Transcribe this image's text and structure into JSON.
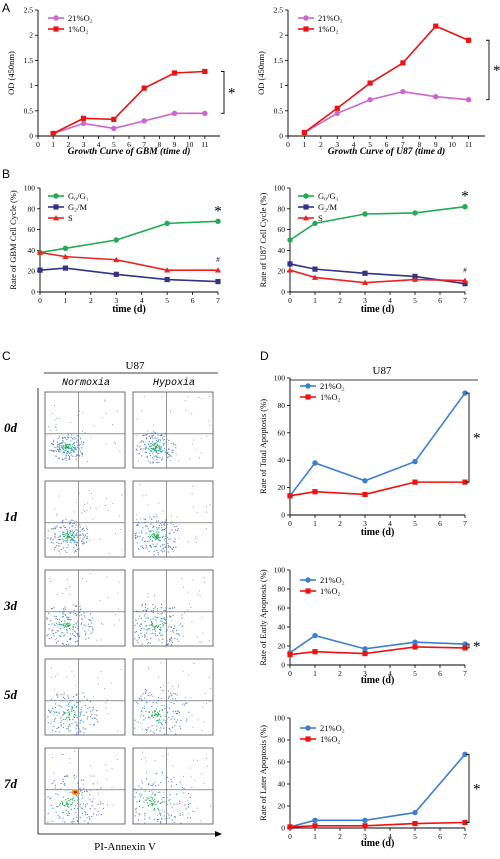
{
  "panels": {
    "A": "A",
    "B": "B",
    "C": "C",
    "D": "D"
  },
  "colors": {
    "normoxia": "#cc66cc",
    "hypoxia": "#ee1111",
    "g0g1": "#22aa55",
    "g2m": "#333388",
    "s": "#ee2222",
    "blue": "#3b7fd0",
    "red": "#ee1111"
  },
  "chart_data": [
    {
      "id": "A1",
      "type": "line",
      "ylabel": "OD (450nm)",
      "xlabel": "Growth Curve of GBM (time d)",
      "x": [
        1,
        3,
        5,
        7,
        9,
        11
      ],
      "xlim": [
        0,
        12
      ],
      "ylim": [
        0,
        2.5
      ],
      "xticks": [
        "0",
        "1",
        "2",
        "3",
        "4",
        "5",
        "6",
        "7",
        "8",
        "9",
        "10",
        "11"
      ],
      "yticks": [
        "0",
        "0.5",
        "1",
        "1.5",
        "2",
        "2.5"
      ],
      "series": [
        {
          "name": "21%O₂",
          "values": [
            0.05,
            0.25,
            0.15,
            0.3,
            0.45,
            0.45
          ],
          "color_key": "normoxia"
        },
        {
          "name": "1%O₂",
          "values": [
            0.05,
            0.35,
            0.33,
            0.95,
            1.25,
            1.28
          ],
          "color_key": "hypoxia"
        }
      ],
      "annotation": "*"
    },
    {
      "id": "A2",
      "type": "line",
      "ylabel": "OD (450nm)",
      "xlabel": "Growth Curve of U87 (time d)",
      "x": [
        1,
        3,
        5,
        7,
        9,
        11
      ],
      "xlim": [
        0,
        12
      ],
      "ylim": [
        0,
        2.5
      ],
      "xticks": [
        "0",
        "1",
        "2",
        "3",
        "4",
        "5",
        "6",
        "7",
        "8",
        "9",
        "10",
        "11"
      ],
      "yticks": [
        "0",
        "0.5",
        "1",
        "1.5",
        "2",
        "2.5"
      ],
      "series": [
        {
          "name": "21%O₂",
          "values": [
            0.07,
            0.45,
            0.72,
            0.88,
            0.78,
            0.72
          ],
          "color_key": "normoxia"
        },
        {
          "name": "1%O₂",
          "values": [
            0.07,
            0.55,
            1.05,
            1.45,
            2.18,
            1.9
          ],
          "color_key": "hypoxia"
        }
      ],
      "annotation": "*"
    },
    {
      "id": "B1",
      "type": "line",
      "ylabel": "Rate of GBM Cell Cycle (%)",
      "xlabel": "time (d)",
      "x": [
        0,
        1,
        3,
        5,
        7
      ],
      "xlim": [
        0,
        7
      ],
      "ylim": [
        0,
        100
      ],
      "xticks": [
        "0",
        "1",
        "2",
        "3",
        "4",
        "5",
        "6",
        "7"
      ],
      "yticks": [
        "0",
        "20",
        "40",
        "60",
        "80",
        "100"
      ],
      "series": [
        {
          "name": "G₀/G₁",
          "values": [
            38,
            42,
            50,
            66,
            68
          ],
          "color_key": "g0g1"
        },
        {
          "name": "G₂/M",
          "values": [
            21,
            23,
            17,
            12,
            10
          ],
          "color_key": "g2m"
        },
        {
          "name": "S",
          "values": [
            38,
            34,
            31,
            21,
            21
          ],
          "color_key": "s"
        }
      ],
      "annotations": [
        "*",
        "#"
      ]
    },
    {
      "id": "B2",
      "type": "line",
      "ylabel": "Rate of U87 Cell Cycle (%)",
      "xlabel": "time (d)",
      "x": [
        0,
        1,
        3,
        5,
        7
      ],
      "xlim": [
        0,
        7
      ],
      "ylim": [
        0,
        100
      ],
      "xticks": [
        "0",
        "1",
        "2",
        "3",
        "4",
        "5",
        "6",
        "7"
      ],
      "yticks": [
        "0",
        "20",
        "40",
        "60",
        "80",
        "100"
      ],
      "series": [
        {
          "name": "G₀/G₁",
          "values": [
            50,
            66,
            75,
            76,
            82
          ],
          "color_key": "g0g1"
        },
        {
          "name": "G₂/M",
          "values": [
            27,
            22,
            18,
            15,
            8
          ],
          "color_key": "g2m"
        },
        {
          "name": "S",
          "values": [
            21,
            14,
            9,
            12,
            11
          ],
          "color_key": "s"
        }
      ],
      "annotations": [
        "*",
        "#"
      ]
    },
    {
      "id": "D1",
      "type": "line",
      "ylabel": "Rate of Total Apoptosis (%)",
      "xlabel": "time (d)",
      "x": [
        0,
        1,
        3,
        5,
        7
      ],
      "xlim": [
        0,
        7
      ],
      "ylim": [
        0,
        100
      ],
      "xticks": [
        "0",
        "1",
        "2",
        "3",
        "4",
        "5",
        "6",
        "7"
      ],
      "yticks": [
        "0",
        "20",
        "40",
        "60",
        "80",
        "100"
      ],
      "series": [
        {
          "name": "21%O₂",
          "values": [
            14,
            38,
            25,
            39,
            89
          ],
          "color_key": "blue"
        },
        {
          "name": "1%O₂",
          "values": [
            14,
            17,
            15,
            24,
            24
          ],
          "color_key": "red"
        }
      ],
      "annotation": "*"
    },
    {
      "id": "D2",
      "type": "line",
      "ylabel": "Rate of Early Apoptosis (%)",
      "xlabel": "time (d)",
      "x": [
        0,
        1,
        3,
        5,
        7
      ],
      "xlim": [
        0,
        7
      ],
      "ylim": [
        0,
        100
      ],
      "xticks": [
        "0",
        "1",
        "2",
        "3",
        "4",
        "5",
        "6",
        "7"
      ],
      "yticks": [
        "0",
        "20",
        "40",
        "60",
        "80",
        "100"
      ],
      "series": [
        {
          "name": "21%O₂",
          "values": [
            13,
            31,
            17,
            24,
            22
          ],
          "color_key": "blue"
        },
        {
          "name": "1%O₂",
          "values": [
            11,
            14,
            12,
            19,
            18
          ],
          "color_key": "red"
        }
      ],
      "annotation": "*"
    },
    {
      "id": "D3",
      "type": "line",
      "ylabel": "Rate of Later Apoptosis (%)",
      "xlabel": "time (d)",
      "x": [
        0,
        1,
        3,
        5,
        7
      ],
      "xlim": [
        0,
        7
      ],
      "ylim": [
        0,
        100
      ],
      "xticks": [
        "0",
        "1",
        "2",
        "3",
        "4",
        "5",
        "6",
        "7"
      ],
      "yticks": [
        "0",
        "20",
        "40",
        "60",
        "80",
        "100"
      ],
      "series": [
        {
          "name": "21%O₂",
          "values": [
            1,
            7,
            7,
            14,
            67
          ],
          "color_key": "blue"
        },
        {
          "name": "1%O₂",
          "values": [
            1,
            2,
            2,
            4,
            5
          ],
          "color_key": "red"
        }
      ],
      "annotation": "*"
    }
  ],
  "flow": {
    "title": "U87",
    "columns": [
      "Normoxia",
      "Hypoxia"
    ],
    "rows": [
      "0d",
      "1d",
      "3d",
      "5d",
      "7d"
    ],
    "xlabel": "PI-Annexin V"
  },
  "d_title": "U87"
}
